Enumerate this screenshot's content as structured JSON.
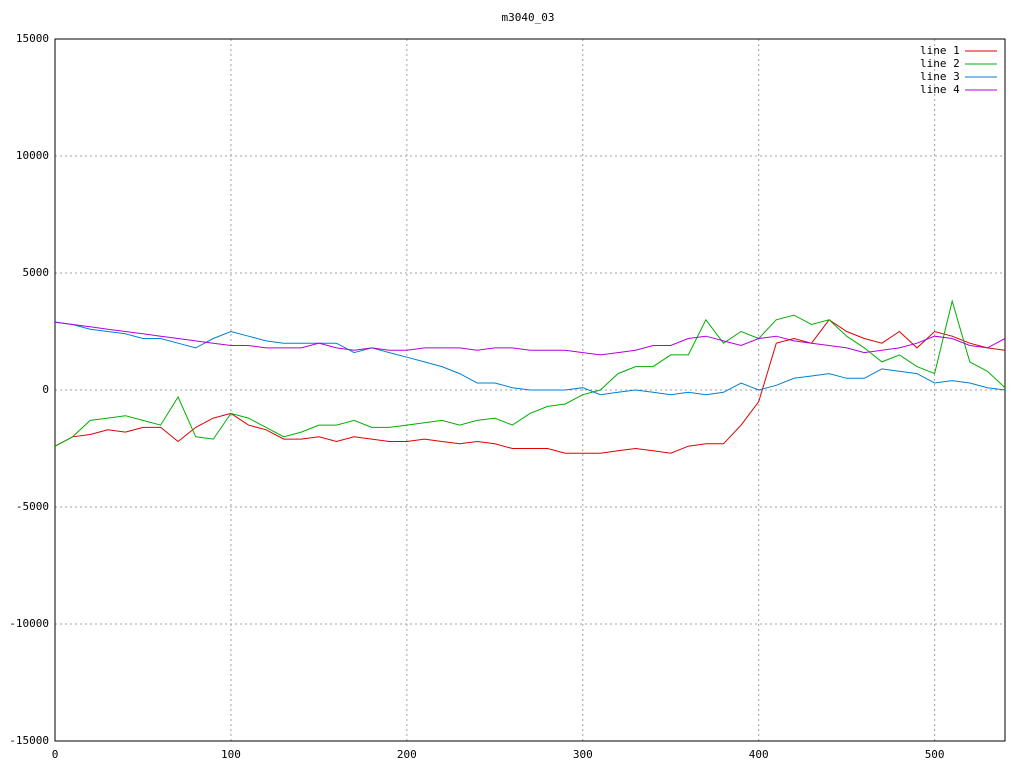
{
  "chart_data": {
    "type": "line",
    "title": "m3040_03",
    "x": [
      0,
      10,
      20,
      30,
      40,
      50,
      60,
      70,
      80,
      90,
      100,
      110,
      120,
      130,
      140,
      150,
      160,
      170,
      180,
      190,
      200,
      210,
      220,
      230,
      240,
      250,
      260,
      270,
      280,
      290,
      300,
      310,
      320,
      330,
      340,
      350,
      360,
      370,
      380,
      390,
      400,
      410,
      420,
      430,
      440,
      450,
      460,
      470,
      480,
      490,
      500,
      510,
      520,
      530,
      540
    ],
    "series": [
      {
        "name": "line 1",
        "color": "#e00000",
        "values": [
          -2400,
          -2000,
          -1900,
          -1700,
          -1800,
          -1600,
          -1600,
          -2200,
          -1600,
          -1200,
          -1000,
          -1500,
          -1700,
          -2100,
          -2100,
          -2000,
          -2200,
          -2000,
          -2100,
          -2200,
          -2200,
          -2100,
          -2200,
          -2300,
          -2200,
          -2300,
          -2500,
          -2500,
          -2500,
          -2700,
          -2700,
          -2700,
          -2600,
          -2500,
          -2600,
          -2700,
          -2400,
          -2300,
          -2300,
          -1500,
          -500,
          2000,
          2200,
          2000,
          3000,
          2500,
          2200,
          2000,
          2500,
          1800,
          2500,
          2300,
          2000,
          1800,
          1700
        ]
      },
      {
        "name": "line 2",
        "color": "#00b000",
        "values": [
          -2400,
          -2000,
          -1300,
          -1200,
          -1100,
          -1300,
          -1500,
          -300,
          -2000,
          -2100,
          -1000,
          -1200,
          -1600,
          -2000,
          -1800,
          -1500,
          -1500,
          -1300,
          -1600,
          -1600,
          -1500,
          -1400,
          -1300,
          -1500,
          -1300,
          -1200,
          -1500,
          -1000,
          -700,
          -600,
          -200,
          0,
          700,
          1000,
          1000,
          1500,
          1500,
          3000,
          2000,
          2500,
          2200,
          3000,
          3200,
          2800,
          3000,
          2300,
          1800,
          1200,
          1500,
          1000,
          700,
          3800,
          1200,
          800,
          100
        ]
      },
      {
        "name": "line 3",
        "color": "#0080d0",
        "values": [
          2900,
          2800,
          2600,
          2500,
          2400,
          2200,
          2200,
          2000,
          1800,
          2200,
          2500,
          2300,
          2100,
          2000,
          2000,
          2000,
          2000,
          1600,
          1800,
          1600,
          1400,
          1200,
          1000,
          700,
          300,
          300,
          100,
          0,
          0,
          0,
          100,
          -200,
          -100,
          0,
          -100,
          -200,
          -100,
          -200,
          -100,
          300,
          0,
          200,
          500,
          600,
          700,
          500,
          500,
          900,
          800,
          700,
          300,
          400,
          300,
          100,
          0
        ]
      },
      {
        "name": "line 4",
        "color": "#b000e0",
        "values": [
          2900,
          2800,
          2700,
          2600,
          2500,
          2400,
          2300,
          2200,
          2100,
          2000,
          1900,
          1900,
          1800,
          1800,
          1800,
          2000,
          1800,
          1700,
          1800,
          1700,
          1700,
          1800,
          1800,
          1800,
          1700,
          1800,
          1800,
          1700,
          1700,
          1700,
          1600,
          1500,
          1600,
          1700,
          1900,
          1900,
          2200,
          2300,
          2100,
          1900,
          2200,
          2300,
          2100,
          2000,
          1900,
          1800,
          1600,
          1700,
          1800,
          2000,
          2300,
          2200,
          1900,
          1800,
          2200
        ]
      }
    ],
    "xlim": [
      0,
      540
    ],
    "ylim": [
      -15000,
      15000
    ],
    "xticks": [
      0,
      100,
      200,
      300,
      400,
      500
    ],
    "yticks": [
      -15000,
      -10000,
      -5000,
      0,
      5000,
      10000,
      15000
    ],
    "grid": true,
    "legend": "top-right"
  }
}
